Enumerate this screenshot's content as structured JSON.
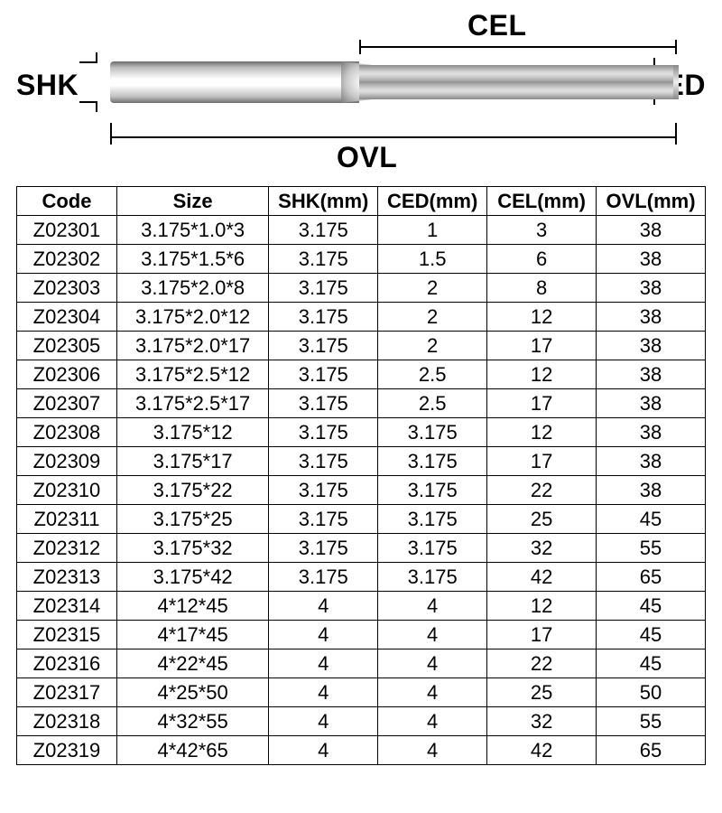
{
  "diagram": {
    "labels": {
      "cel": "CEL",
      "shk": "SHK",
      "ced": "CED",
      "ovl": "OVL"
    },
    "colors": {
      "line": "#000000",
      "shank_gradient": [
        "#6d6d6d",
        "#bfbfbf",
        "#fefefe",
        "#ffffff",
        "#fefefe",
        "#bfbfbf",
        "#6d6d6d"
      ],
      "flute_gradient": [
        "#8a8a8a",
        "#d7d7d7",
        "#ffffff",
        "#d7d7d7",
        "#8a8a8a"
      ]
    },
    "label_fontsize": 32
  },
  "table": {
    "type": "table",
    "columns": [
      "Code",
      "Size",
      "SHK(mm)",
      "CED(mm)",
      "CEL(mm)",
      "OVL(mm)"
    ],
    "col_widths_pct": [
      14.5,
      22,
      15.8,
      15.8,
      15.8,
      15.8
    ],
    "header_fontsize": 22,
    "cell_fontsize": 22,
    "border_color": "#000000",
    "background_color": "#ffffff",
    "rows": [
      [
        "Z02301",
        "3.175*1.0*3",
        "3.175",
        "1",
        "3",
        "38"
      ],
      [
        "Z02302",
        "3.175*1.5*6",
        "3.175",
        "1.5",
        "6",
        "38"
      ],
      [
        "Z02303",
        "3.175*2.0*8",
        "3.175",
        "2",
        "8",
        "38"
      ],
      [
        "Z02304",
        "3.175*2.0*12",
        "3.175",
        "2",
        "12",
        "38"
      ],
      [
        "Z02305",
        "3.175*2.0*17",
        "3.175",
        "2",
        "17",
        "38"
      ],
      [
        "Z02306",
        "3.175*2.5*12",
        "3.175",
        "2.5",
        "12",
        "38"
      ],
      [
        "Z02307",
        "3.175*2.5*17",
        "3.175",
        "2.5",
        "17",
        "38"
      ],
      [
        "Z02308",
        "3.175*12",
        "3.175",
        "3.175",
        "12",
        "38"
      ],
      [
        "Z02309",
        "3.175*17",
        "3.175",
        "3.175",
        "17",
        "38"
      ],
      [
        "Z02310",
        "3.175*22",
        "3.175",
        "3.175",
        "22",
        "38"
      ],
      [
        "Z02311",
        "3.175*25",
        "3.175",
        "3.175",
        "25",
        "45"
      ],
      [
        "Z02312",
        "3.175*32",
        "3.175",
        "3.175",
        "32",
        "55"
      ],
      [
        "Z02313",
        "3.175*42",
        "3.175",
        "3.175",
        "42",
        "65"
      ],
      [
        "Z02314",
        "4*12*45",
        "4",
        "4",
        "12",
        "45"
      ],
      [
        "Z02315",
        "4*17*45",
        "4",
        "4",
        "17",
        "45"
      ],
      [
        "Z02316",
        "4*22*45",
        "4",
        "4",
        "22",
        "45"
      ],
      [
        "Z02317",
        "4*25*50",
        "4",
        "4",
        "25",
        "50"
      ],
      [
        "Z02318",
        "4*32*55",
        "4",
        "4",
        "32",
        "55"
      ],
      [
        "Z02319",
        "4*42*65",
        "4",
        "4",
        "42",
        "65"
      ]
    ]
  }
}
